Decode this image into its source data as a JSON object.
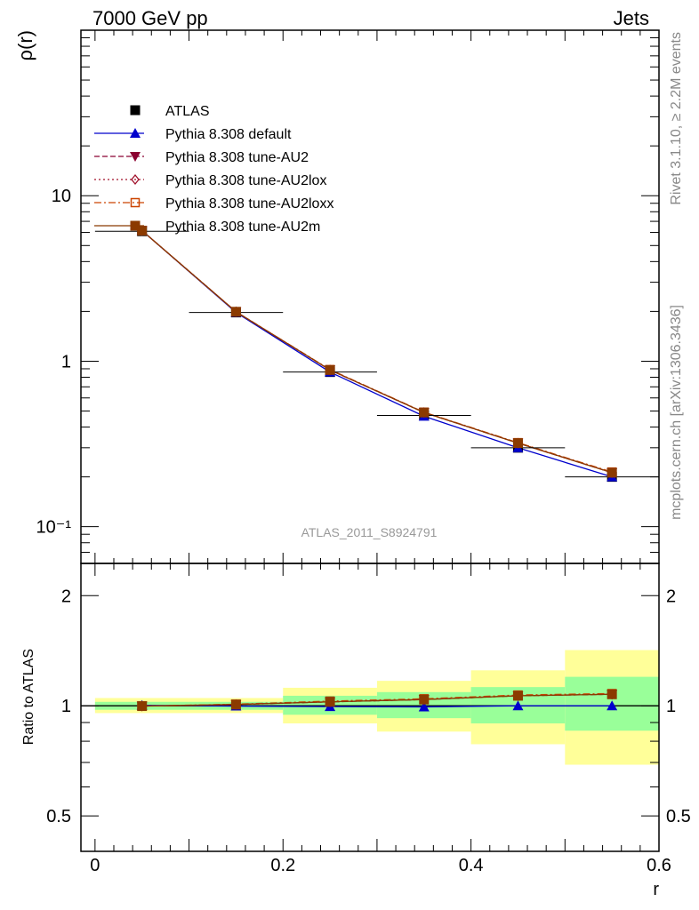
{
  "header": {
    "left": "7000 GeV pp",
    "right": "Jets"
  },
  "side_texts": {
    "rivet": "Rivet 3.1.10, ≥ 2.2M events",
    "mcplots": "mcplots.cern.ch [arXiv:1306.3436]"
  },
  "analysis_id": "ATLAS_2011_S8924791",
  "colors": {
    "atlas": "#000000",
    "default": "#0000cc",
    "au2": "#8b0030",
    "au2lox": "#a0102a",
    "au2loxx": "#cc4400",
    "au2m": "#8b3a00",
    "band_inner": "#99ff99",
    "band_outer": "#ffff99"
  },
  "chart_data": [
    {
      "type": "line",
      "name": "main",
      "ylabel": "ρ(r)",
      "yscale": "log",
      "ylim": [
        0.06,
        100
      ],
      "xlim": [
        -0.015,
        0.6
      ],
      "y_tick_labels": [
        "10⁻¹",
        "1",
        "10"
      ],
      "legend_placement": "upper-left",
      "x": [
        0.05,
        0.15,
        0.25,
        0.35,
        0.45,
        0.55
      ],
      "series": [
        {
          "name": "ATLAS",
          "key": "atlas",
          "marker": "square-filled",
          "values": [
            6.1,
            1.97,
            0.86,
            0.47,
            0.3,
            0.2
          ],
          "x_err": 0.05
        },
        {
          "name": "Pythia 8.308 default",
          "key": "default",
          "marker": "triangle-up",
          "dash": "",
          "values": [
            6.15,
            1.97,
            0.86,
            0.465,
            0.3,
            0.2
          ]
        },
        {
          "name": "Pythia 8.308 tune-AU2",
          "key": "au2",
          "marker": "triangle-down",
          "dash": "6,3",
          "values": [
            6.15,
            1.99,
            0.885,
            0.49,
            0.32,
            0.212
          ]
        },
        {
          "name": "Pythia 8.308 tune-AU2lox",
          "key": "au2lox",
          "marker": "diamond-open",
          "dash": "2,3",
          "values": [
            6.15,
            1.99,
            0.885,
            0.49,
            0.32,
            0.212
          ]
        },
        {
          "name": "Pythia 8.308 tune-AU2loxx",
          "key": "au2loxx",
          "marker": "square-open",
          "dash": "8,3,2,3",
          "values": [
            6.15,
            1.99,
            0.89,
            0.492,
            0.322,
            0.214
          ]
        },
        {
          "name": "Pythia 8.308 tune-AU2m",
          "key": "au2m",
          "marker": "square-filled",
          "dash": "",
          "values": [
            6.15,
            1.99,
            0.885,
            0.49,
            0.32,
            0.212
          ]
        }
      ]
    },
    {
      "type": "line",
      "name": "ratio",
      "ylabel": "Ratio to ATLAS",
      "xlabel": "r",
      "yscale": "log",
      "ylim": [
        0.4,
        2.45
      ],
      "xlim": [
        -0.015,
        0.6
      ],
      "x_tick_labels": [
        "0",
        "0.2",
        "0.4",
        "0.6"
      ],
      "y_tick_labels": [
        "0.5",
        "1",
        "2"
      ],
      "bands": [
        {
          "x0": 0.0,
          "x1": 0.1,
          "inner": [
            0.975,
            1.025
          ],
          "outer": [
            0.955,
            1.05
          ]
        },
        {
          "x0": 0.1,
          "x1": 0.2,
          "inner": [
            0.975,
            1.025
          ],
          "outer": [
            0.955,
            1.05
          ]
        },
        {
          "x0": 0.2,
          "x1": 0.3,
          "inner": [
            0.945,
            1.065
          ],
          "outer": [
            0.895,
            1.12
          ]
        },
        {
          "x0": 0.3,
          "x1": 0.4,
          "inner": [
            0.925,
            1.09
          ],
          "outer": [
            0.85,
            1.17
          ]
        },
        {
          "x0": 0.4,
          "x1": 0.5,
          "inner": [
            0.895,
            1.125
          ],
          "outer": [
            0.785,
            1.25
          ]
        },
        {
          "x0": 0.5,
          "x1": 0.6,
          "inner": [
            0.855,
            1.2
          ],
          "outer": [
            0.69,
            1.42
          ]
        }
      ],
      "x": [
        0.05,
        0.15,
        0.25,
        0.35,
        0.45,
        0.55
      ],
      "series": [
        {
          "name": "Pythia 8.308 default",
          "key": "default",
          "marker": "triangle-up",
          "dash": "",
          "values": [
            1.003,
            0.998,
            0.995,
            0.993,
            1.0,
            1.0
          ]
        },
        {
          "name": "Pythia 8.308 tune-AU2",
          "key": "au2",
          "marker": "triangle-down",
          "dash": "6,3",
          "values": [
            0.998,
            1.008,
            1.025,
            1.04,
            1.065,
            1.075
          ]
        },
        {
          "name": "Pythia 8.308 tune-AU2lox",
          "key": "au2lox",
          "marker": "diamond-open",
          "dash": "2,3",
          "values": [
            0.998,
            1.008,
            1.025,
            1.04,
            1.065,
            1.075
          ]
        },
        {
          "name": "Pythia 8.308 tune-AU2loxx",
          "key": "au2loxx",
          "marker": "square-open",
          "dash": "8,3,2,3",
          "values": [
            0.998,
            1.01,
            1.03,
            1.045,
            1.07,
            1.08
          ]
        },
        {
          "name": "Pythia 8.308 tune-AU2m",
          "key": "au2m",
          "marker": "square-filled",
          "dash": "",
          "values": [
            0.998,
            1.008,
            1.025,
            1.04,
            1.065,
            1.075
          ]
        }
      ]
    }
  ]
}
